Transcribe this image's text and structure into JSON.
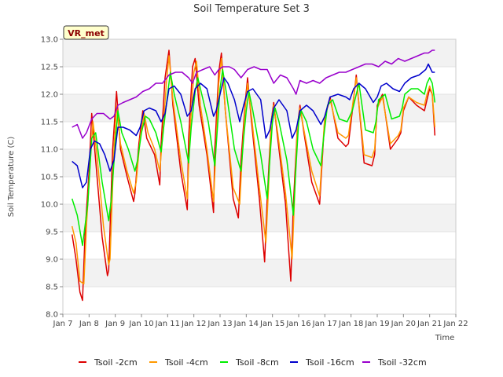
{
  "chart_data": {
    "type": "line",
    "title": "Soil Temperature Set 3",
    "xlabel": "Time",
    "ylabel": "Soil Temperature (C)",
    "badge": "VR_met",
    "xlim": [
      7,
      22
    ],
    "ylim": [
      8.0,
      13.0
    ],
    "x_ticks": [
      7,
      8,
      9,
      10,
      11,
      12,
      13,
      14,
      15,
      16,
      17,
      18,
      19,
      20,
      21,
      22
    ],
    "x_tick_labels": [
      "Jan 7",
      "Jan 8",
      "Jan 9",
      "Jan 10",
      "Jan 11",
      "Jan 12",
      "Jan 13",
      "Jan 14",
      "Jan 15",
      "Jan 16",
      "Jan 17",
      "Jan 18",
      "Jan 19",
      "Jan 20",
      "Jan 21",
      "Jan 22"
    ],
    "y_ticks": [
      8.0,
      8.5,
      9.0,
      9.5,
      10.0,
      10.5,
      11.0,
      11.5,
      12.0,
      12.5,
      13.0
    ],
    "y_tick_labels": [
      "8.0",
      "8.5",
      "9.0",
      "9.5",
      "10.0",
      "10.5",
      "11.0",
      "11.5",
      "12.0",
      "12.5",
      "13.0"
    ],
    "grid": true,
    "legend_position": "bottom",
    "series": [
      {
        "name": "Tsoil -2cm",
        "color": "#dd0000",
        "x": [
          7.35,
          7.5,
          7.65,
          7.75,
          7.85,
          8.0,
          8.1,
          8.25,
          8.5,
          8.7,
          8.75,
          8.9,
          9.05,
          9.2,
          9.45,
          9.7,
          9.75,
          9.9,
          10.05,
          10.2,
          10.5,
          10.7,
          10.75,
          10.9,
          11.05,
          11.2,
          11.5,
          11.75,
          11.8,
          11.95,
          12.05,
          12.2,
          12.5,
          12.75,
          12.8,
          12.95,
          13.05,
          13.2,
          13.5,
          13.7,
          13.8,
          13.95,
          14.05,
          14.2,
          14.5,
          14.7,
          14.8,
          14.95,
          15.05,
          15.2,
          15.5,
          15.7,
          15.8,
          15.95,
          16.05,
          16.2,
          16.5,
          16.8,
          16.9,
          17.0,
          17.2,
          17.5,
          17.8,
          17.9,
          18.0,
          18.2,
          18.5,
          18.8,
          18.9,
          19.0,
          19.2,
          19.5,
          19.8,
          19.9,
          20.0,
          20.2,
          20.5,
          20.8,
          20.9,
          21.0,
          21.1,
          21.2
        ],
        "values": [
          9.45,
          9.0,
          8.4,
          8.25,
          9.5,
          10.6,
          11.65,
          10.8,
          9.4,
          8.7,
          8.8,
          11.0,
          12.05,
          11.0,
          10.5,
          10.05,
          10.2,
          11.1,
          11.7,
          11.2,
          10.9,
          10.35,
          11.1,
          12.3,
          12.8,
          11.8,
          10.6,
          9.9,
          11.2,
          12.5,
          12.65,
          11.8,
          10.9,
          9.85,
          11.0,
          12.4,
          12.75,
          11.7,
          10.1,
          9.75,
          10.8,
          11.8,
          12.3,
          11.5,
          10.1,
          8.95,
          10.1,
          11.5,
          11.85,
          11.2,
          10.0,
          8.6,
          10.0,
          11.4,
          11.8,
          11.3,
          10.4,
          10.0,
          10.8,
          11.6,
          11.95,
          11.2,
          11.05,
          11.1,
          11.5,
          12.35,
          10.75,
          10.7,
          10.9,
          11.8,
          12.0,
          11.0,
          11.2,
          11.3,
          11.7,
          11.95,
          11.8,
          11.7,
          11.9,
          12.1,
          12.0,
          11.25
        ]
      },
      {
        "name": "Tsoil -4cm",
        "color": "#ff9900",
        "x": [
          7.35,
          7.5,
          7.65,
          7.8,
          7.9,
          8.05,
          8.15,
          8.3,
          8.55,
          8.75,
          8.8,
          8.95,
          9.05,
          9.2,
          9.45,
          9.7,
          9.8,
          9.95,
          10.1,
          10.25,
          10.5,
          10.7,
          10.8,
          10.95,
          11.05,
          11.2,
          11.5,
          11.75,
          11.85,
          12.0,
          12.1,
          12.25,
          12.5,
          12.75,
          12.85,
          12.95,
          13.05,
          13.2,
          13.5,
          13.75,
          13.85,
          13.95,
          14.05,
          14.2,
          14.5,
          14.75,
          14.85,
          14.95,
          15.05,
          15.2,
          15.5,
          15.75,
          15.85,
          15.95,
          16.05,
          16.2,
          16.5,
          16.8,
          16.9,
          17.0,
          17.2,
          17.5,
          17.8,
          17.9,
          18.0,
          18.2,
          18.5,
          18.8,
          18.9,
          19.0,
          19.2,
          19.5,
          19.8,
          19.9,
          20.0,
          20.2,
          20.5,
          20.8,
          20.9,
          21.0,
          21.1,
          21.2
        ],
        "values": [
          9.6,
          9.3,
          8.6,
          8.55,
          9.6,
          10.8,
          11.5,
          10.9,
          9.6,
          8.9,
          9.0,
          11.0,
          11.8,
          11.1,
          10.6,
          10.2,
          10.4,
          11.2,
          11.65,
          11.3,
          11.0,
          10.6,
          11.2,
          12.2,
          12.7,
          11.9,
          10.8,
          10.1,
          11.3,
          12.4,
          12.6,
          11.8,
          11.0,
          10.05,
          11.1,
          12.2,
          12.65,
          11.7,
          10.3,
          10.0,
          10.9,
          11.7,
          12.2,
          11.6,
          10.3,
          9.3,
          10.3,
          11.5,
          11.8,
          11.3,
          10.2,
          9.0,
          10.2,
          11.4,
          11.75,
          11.35,
          10.6,
          10.15,
          10.9,
          11.6,
          11.9,
          11.3,
          11.2,
          11.25,
          11.6,
          12.3,
          10.9,
          10.85,
          11.0,
          11.75,
          11.95,
          11.1,
          11.25,
          11.35,
          11.75,
          11.95,
          11.85,
          11.8,
          12.0,
          12.15,
          12.0,
          11.4
        ]
      },
      {
        "name": "Tsoil -8cm",
        "color": "#00ee00",
        "x": [
          7.35,
          7.55,
          7.75,
          7.95,
          8.1,
          8.25,
          8.5,
          8.75,
          8.85,
          9.0,
          9.1,
          9.25,
          9.5,
          9.75,
          9.85,
          10.0,
          10.15,
          10.3,
          10.55,
          10.75,
          10.85,
          11.0,
          11.1,
          11.25,
          11.5,
          11.8,
          11.9,
          12.05,
          12.15,
          12.3,
          12.55,
          12.8,
          12.9,
          13.0,
          13.1,
          13.25,
          13.55,
          13.8,
          13.9,
          14.0,
          14.1,
          14.25,
          14.55,
          14.8,
          14.9,
          15.0,
          15.1,
          15.25,
          15.55,
          15.8,
          15.9,
          16.0,
          16.1,
          16.3,
          16.55,
          16.85,
          16.95,
          17.1,
          17.3,
          17.55,
          17.85,
          17.95,
          18.05,
          18.3,
          18.55,
          18.85,
          18.95,
          19.05,
          19.3,
          19.55,
          19.85,
          19.95,
          20.05,
          20.3,
          20.55,
          20.8,
          20.9,
          21.0,
          21.1,
          21.2
        ],
        "values": [
          10.1,
          9.8,
          9.25,
          10.0,
          11.2,
          11.3,
          10.4,
          9.7,
          10.1,
          11.1,
          11.7,
          11.3,
          11.0,
          10.6,
          10.8,
          11.3,
          11.6,
          11.55,
          11.3,
          10.95,
          11.4,
          12.0,
          12.4,
          12.0,
          11.5,
          10.75,
          11.4,
          12.05,
          12.3,
          12.0,
          11.5,
          10.7,
          11.4,
          12.1,
          12.45,
          12.0,
          11.0,
          10.6,
          11.2,
          11.7,
          12.05,
          11.7,
          10.9,
          10.1,
          10.8,
          11.5,
          11.75,
          11.5,
          10.8,
          9.8,
          10.7,
          11.5,
          11.7,
          11.5,
          11.0,
          10.7,
          11.2,
          11.8,
          11.9,
          11.55,
          11.5,
          11.6,
          11.7,
          12.2,
          11.35,
          11.3,
          11.5,
          11.9,
          12.0,
          11.55,
          11.6,
          11.75,
          12.0,
          12.1,
          12.1,
          12.0,
          12.2,
          12.3,
          12.2,
          11.85
        ]
      },
      {
        "name": "Tsoil -16cm",
        "color": "#0000cc",
        "x": [
          7.35,
          7.55,
          7.75,
          7.9,
          8.05,
          8.2,
          8.4,
          8.6,
          8.8,
          8.95,
          9.1,
          9.3,
          9.55,
          9.8,
          9.95,
          10.1,
          10.3,
          10.55,
          10.75,
          10.9,
          11.05,
          11.25,
          11.5,
          11.75,
          11.9,
          12.05,
          12.25,
          12.5,
          12.75,
          12.85,
          13.0,
          13.15,
          13.3,
          13.55,
          13.75,
          13.9,
          14.05,
          14.25,
          14.55,
          14.75,
          14.9,
          15.05,
          15.25,
          15.55,
          15.75,
          15.9,
          16.05,
          16.3,
          16.55,
          16.85,
          17.0,
          17.2,
          17.5,
          17.8,
          17.95,
          18.1,
          18.3,
          18.55,
          18.85,
          19.0,
          19.15,
          19.35,
          19.6,
          19.85,
          20.05,
          20.3,
          20.6,
          20.85,
          20.95,
          21.05,
          21.1,
          21.2
        ],
        "values": [
          10.78,
          10.7,
          10.3,
          10.4,
          11.0,
          11.15,
          11.1,
          10.9,
          10.6,
          10.8,
          11.4,
          11.4,
          11.35,
          11.25,
          11.4,
          11.7,
          11.75,
          11.7,
          11.5,
          11.65,
          12.1,
          12.15,
          12.0,
          11.6,
          11.7,
          12.1,
          12.2,
          12.1,
          11.6,
          11.7,
          12.0,
          12.3,
          12.2,
          11.9,
          11.5,
          11.8,
          12.05,
          12.1,
          11.9,
          11.2,
          11.35,
          11.75,
          11.9,
          11.7,
          11.2,
          11.35,
          11.7,
          11.8,
          11.7,
          11.45,
          11.6,
          11.95,
          12.0,
          11.95,
          11.9,
          12.1,
          12.2,
          12.1,
          11.85,
          11.95,
          12.15,
          12.2,
          12.1,
          12.05,
          12.2,
          12.3,
          12.35,
          12.45,
          12.55,
          12.45,
          12.4,
          12.4
        ]
      },
      {
        "name": "Tsoil -32cm",
        "color": "#9900cc",
        "x": [
          7.35,
          7.55,
          7.75,
          7.9,
          8.1,
          8.3,
          8.55,
          8.8,
          8.95,
          9.1,
          9.3,
          9.55,
          9.8,
          10.05,
          10.3,
          10.55,
          10.8,
          11.05,
          11.3,
          11.55,
          11.8,
          11.95,
          12.1,
          12.35,
          12.6,
          12.8,
          12.95,
          13.1,
          13.35,
          13.55,
          13.8,
          14.05,
          14.3,
          14.55,
          14.8,
          15.05,
          15.3,
          15.55,
          15.8,
          15.9,
          16.05,
          16.3,
          16.55,
          16.8,
          17.05,
          17.3,
          17.55,
          17.8,
          18.05,
          18.3,
          18.55,
          18.8,
          19.05,
          19.3,
          19.55,
          19.8,
          20.05,
          20.3,
          20.55,
          20.8,
          20.95,
          21.1,
          21.2
        ],
        "values": [
          11.4,
          11.45,
          11.2,
          11.3,
          11.55,
          11.65,
          11.65,
          11.55,
          11.6,
          11.8,
          11.85,
          11.9,
          11.95,
          12.05,
          12.1,
          12.2,
          12.2,
          12.35,
          12.4,
          12.4,
          12.3,
          12.2,
          12.4,
          12.45,
          12.5,
          12.35,
          12.45,
          12.5,
          12.5,
          12.45,
          12.3,
          12.45,
          12.5,
          12.45,
          12.45,
          12.2,
          12.35,
          12.3,
          12.1,
          12.0,
          12.25,
          12.2,
          12.25,
          12.2,
          12.3,
          12.35,
          12.4,
          12.4,
          12.45,
          12.5,
          12.55,
          12.55,
          12.5,
          12.6,
          12.55,
          12.65,
          12.6,
          12.65,
          12.7,
          12.75,
          12.75,
          12.8,
          12.8
        ]
      }
    ]
  }
}
